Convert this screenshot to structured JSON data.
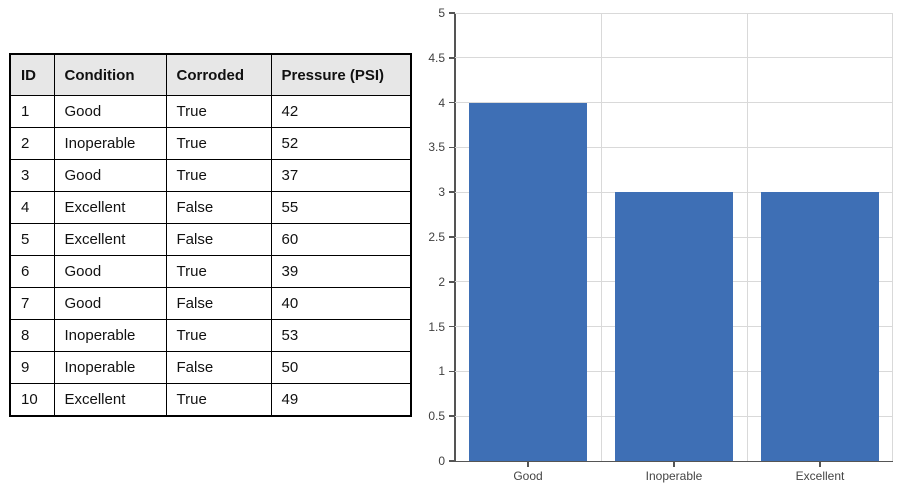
{
  "table": {
    "columns": [
      "ID",
      "Condition",
      "Corroded",
      "Pressure (PSI)"
    ],
    "rows": [
      [
        "1",
        "Good",
        "True",
        "42"
      ],
      [
        "2",
        "Inoperable",
        "True",
        "52"
      ],
      [
        "3",
        "Good",
        "True",
        "37"
      ],
      [
        "4",
        "Excellent",
        "False",
        "55"
      ],
      [
        "5",
        "Excellent",
        "False",
        "60"
      ],
      [
        "6",
        "Good",
        "True",
        "39"
      ],
      [
        "7",
        "Good",
        "False",
        "40"
      ],
      [
        "8",
        "Inoperable",
        "True",
        "53"
      ],
      [
        "9",
        "Inoperable",
        "False",
        "50"
      ],
      [
        "10",
        "Excellent",
        "True",
        "49"
      ]
    ],
    "header_bg": "#e7e7e7",
    "border_color": "#000000"
  },
  "chart_data": {
    "type": "bar",
    "categories": [
      "Good",
      "Inoperable",
      "Excellent"
    ],
    "values": [
      4,
      3,
      3
    ],
    "title": "",
    "xlabel": "",
    "ylabel": "",
    "ylim": [
      0,
      5
    ],
    "ytick_step": 0.5,
    "ytick_labels": [
      "0",
      "0.5",
      "1",
      "1.5",
      "2",
      "2.5",
      "3",
      "3.5",
      "4",
      "4.5",
      "5"
    ],
    "grid": true,
    "legend": "none",
    "bar_color": "#3e6fb5",
    "gridline_color": "#d9d9d9",
    "axis_color": "#555555",
    "tick_label_color": "#404040"
  }
}
